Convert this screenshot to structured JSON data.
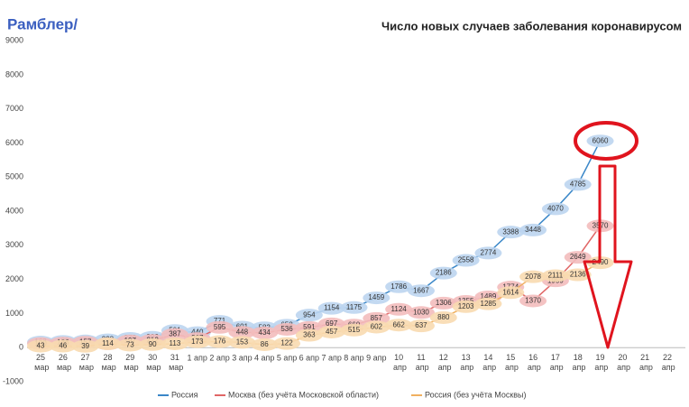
{
  "chart_data": {
    "type": "line",
    "title": "Число новых случаев заболевания коронавирусом",
    "logo": "Рамблер/",
    "categories": [
      "25 мар",
      "26 мар",
      "27 мар",
      "28 мар",
      "29 мар",
      "30 мар",
      "31 мар",
      "1 апр",
      "2 апр",
      "3 апр",
      "4 апр",
      "5 апр",
      "6 апр",
      "7 апр",
      "8 апр",
      "9 апр",
      "10 апр",
      "11 апр",
      "12 апр",
      "13 апр",
      "14 апр",
      "15 апр",
      "16 апр",
      "17 апр",
      "18 апр",
      "19 апр",
      "20 апр",
      "21 апр",
      "22 апр"
    ],
    "series": [
      {
        "name": "Россия",
        "color": "#3a87c8",
        "label_color": "#bcd5ef",
        "values": [
          163,
          182,
          196,
          228,
          270,
          302,
          501,
          440,
          771,
          601,
          582,
          658,
          954,
          1154,
          1175,
          1459,
          1786,
          1667,
          2186,
          2558,
          2774,
          3388,
          3448,
          4070,
          4785,
          6060,
          null,
          null,
          null
        ]
      },
      {
        "name": "Москва (без учёта Московской области)",
        "color": "#e06666",
        "label_color": "#f3bcbc",
        "values": [
          120,
          136,
          157,
          114,
          197,
          212,
          387,
          267,
          595,
          448,
          434,
          536,
          591,
          697,
          660,
          857,
          1124,
          1030,
          1306,
          1355,
          1489,
          1774,
          1370,
          1959,
          2649,
          3570,
          null,
          null,
          null
        ]
      },
      {
        "name": "Россия (без учёта Москвы)",
        "color": "#f0b060",
        "label_color": "#f8dab0",
        "values": [
          43,
          46,
          39,
          114,
          73,
          90,
          113,
          173,
          176,
          153,
          86,
          122,
          363,
          457,
          515,
          602,
          662,
          637,
          880,
          1203,
          1285,
          1614,
          2078,
          2111,
          2136,
          2490,
          null,
          null,
          null
        ]
      }
    ],
    "ylim": [
      -1000,
      9400
    ],
    "yticks": [
      -1000,
      0,
      1000,
      2000,
      3000,
      4000,
      5000,
      6000,
      7000,
      8000,
      9000
    ],
    "grid": false
  }
}
